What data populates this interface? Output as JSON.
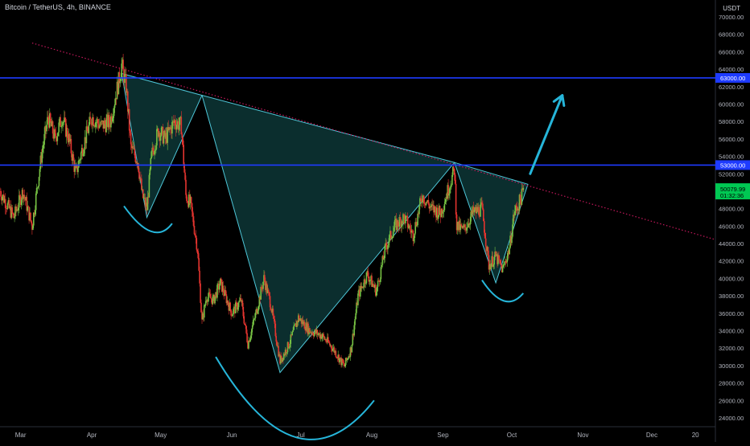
{
  "header": {
    "title": "Bitcoin / TetherUS, 4h, BINANCE",
    "currency": "USDT"
  },
  "colors": {
    "background": "#000000",
    "up_candle": "#76c043",
    "down_candle": "#e3342f",
    "level_line": "#1e3bff",
    "trendline": "#c2185b",
    "pattern_fill": "#0f3d3d",
    "pattern_stroke": "#4ec6d8",
    "arrow": "#26b5d9",
    "axis_text": "#b2b5be",
    "price_badge": "#00c853"
  },
  "chart_data": {
    "type": "candlestick",
    "title": "Bitcoin / TetherUS, 4h, BINANCE",
    "xlabel": "",
    "ylabel": "",
    "y_axis_ticks": [
      24000,
      26000,
      28000,
      30000,
      32000,
      34000,
      36000,
      38000,
      40000,
      42000,
      44000,
      46000,
      48000,
      50000,
      52000,
      54000,
      56000,
      58000,
      60000,
      62000,
      64000,
      66000,
      68000,
      70000
    ],
    "y_tick_labels": [
      "24000.00",
      "26000.00",
      "28000.00",
      "30000.00",
      "32000.00",
      "34000.00",
      "36000.00",
      "38000.00",
      "40000.00",
      "42000.00",
      "44000.00",
      "46000.00",
      "48000.00",
      "50000.00",
      "52000.00",
      "54000.00",
      "56000.00",
      "58000.00",
      "60000.00",
      "62000.00",
      "64000.00",
      "66000.00",
      "68000.00",
      "70000.00"
    ],
    "ylim": [
      23000,
      72000
    ],
    "x_axis_ticks": [
      "Mar",
      "Apr",
      "May",
      "Jun",
      "Jul",
      "Aug",
      "Sep",
      "Oct",
      "Nov",
      "Dec",
      "20"
    ],
    "xlim": [
      "2021-02-20",
      "2021-12-28"
    ],
    "price_path": [
      [
        "2021-02-20",
        50000
      ],
      [
        "2021-02-26",
        47000
      ],
      [
        "2021-03-02",
        50000
      ],
      [
        "2021-03-06",
        46000
      ],
      [
        "2021-03-10",
        54000
      ],
      [
        "2021-03-13",
        58500
      ],
      [
        "2021-03-16",
        56000
      ],
      [
        "2021-03-19",
        58500
      ],
      [
        "2021-03-22",
        56000
      ],
      [
        "2021-03-25",
        52000
      ],
      [
        "2021-03-28",
        55000
      ],
      [
        "2021-04-01",
        58500
      ],
      [
        "2021-04-05",
        57500
      ],
      [
        "2021-04-09",
        58000
      ],
      [
        "2021-04-13",
        63000
      ],
      [
        "2021-04-14",
        64500
      ],
      [
        "2021-04-16",
        62000
      ],
      [
        "2021-04-18",
        55000
      ],
      [
        "2021-04-21",
        53500
      ],
      [
        "2021-04-23",
        49500
      ],
      [
        "2021-04-25",
        48000
      ],
      [
        "2021-04-27",
        54000
      ],
      [
        "2021-04-30",
        57000
      ],
      [
        "2021-05-03",
        56000
      ],
      [
        "2021-05-07",
        58000
      ],
      [
        "2021-05-10",
        57500
      ],
      [
        "2021-05-12",
        49500
      ],
      [
        "2021-05-14",
        48500
      ],
      [
        "2021-05-17",
        43500
      ],
      [
        "2021-05-19",
        35000
      ],
      [
        "2021-05-21",
        38000
      ],
      [
        "2021-05-24",
        37500
      ],
      [
        "2021-05-27",
        39500
      ],
      [
        "2021-06-01",
        36000
      ],
      [
        "2021-06-05",
        37500
      ],
      [
        "2021-06-08",
        32500
      ],
      [
        "2021-06-12",
        36500
      ],
      [
        "2021-06-15",
        40000
      ],
      [
        "2021-06-18",
        37000
      ],
      [
        "2021-06-22",
        30500
      ],
      [
        "2021-06-26",
        32500
      ],
      [
        "2021-06-30",
        35500
      ],
      [
        "2021-07-05",
        34000
      ],
      [
        "2021-07-10",
        33500
      ],
      [
        "2021-07-15",
        32000
      ],
      [
        "2021-07-20",
        29900
      ],
      [
        "2021-07-23",
        32000
      ],
      [
        "2021-07-26",
        38000
      ],
      [
        "2021-07-30",
        40500
      ],
      [
        "2021-08-03",
        38500
      ],
      [
        "2021-08-07",
        43500
      ],
      [
        "2021-08-11",
        46000
      ],
      [
        "2021-08-15",
        47000
      ],
      [
        "2021-08-19",
        45000
      ],
      [
        "2021-08-23",
        49500
      ],
      [
        "2021-08-27",
        48000
      ],
      [
        "2021-08-31",
        47500
      ],
      [
        "2021-09-03",
        50000
      ],
      [
        "2021-09-06",
        52500
      ],
      [
        "2021-09-07",
        46000
      ],
      [
        "2021-09-10",
        45500
      ],
      [
        "2021-09-14",
        47500
      ],
      [
        "2021-09-18",
        48000
      ],
      [
        "2021-09-21",
        41500
      ],
      [
        "2021-09-24",
        42500
      ],
      [
        "2021-09-27",
        41000
      ],
      [
        "2021-09-30",
        43500
      ],
      [
        "2021-10-02",
        47500
      ],
      [
        "2021-10-04",
        48500
      ],
      [
        "2021-10-06",
        50000
      ]
    ],
    "horizontal_levels": [
      {
        "price": 63000,
        "label": "63000.00"
      },
      {
        "price": 53000,
        "label": "53000.00"
      }
    ],
    "last_price": {
      "value": 50079.99,
      "label": "50079.99",
      "countdown": "01:32:36"
    },
    "trendline": {
      "from": [
        "2021-03-06",
        67000
      ],
      "to": [
        "2021-12-28",
        44500
      ]
    },
    "pattern_triangles": [
      [
        [
          "2021-04-14",
          63500
        ],
        [
          "2021-04-25",
          47000
        ],
        [
          "2021-05-19",
          61000
        ]
      ],
      [
        [
          "2021-05-19",
          61000
        ],
        [
          "2021-06-22",
          29200
        ],
        [
          "2021-09-06",
          53300
        ]
      ],
      [
        [
          "2021-09-06",
          53300
        ],
        [
          "2021-09-24",
          39500
        ],
        [
          "2021-10-08",
          50800
        ]
      ]
    ],
    "shoulder_arcs": [
      {
        "start": [
          "2021-04-15",
          48300
        ],
        "control": [
          "2021-04-28",
          43500
        ],
        "end": [
          "2021-05-06",
          46300
        ]
      },
      {
        "start": [
          "2021-05-25",
          31000
        ],
        "control": [
          "2021-06-30",
          15000
        ],
        "end": [
          "2021-08-02",
          26000
        ]
      },
      {
        "start": [
          "2021-09-18",
          39800
        ],
        "control": [
          "2021-09-28",
          35800
        ],
        "end": [
          "2021-10-06",
          38300
        ]
      }
    ],
    "arrow": {
      "from": [
        "2021-10-09",
        52000
      ],
      "to": [
        "2021-10-23",
        61000
      ]
    }
  }
}
